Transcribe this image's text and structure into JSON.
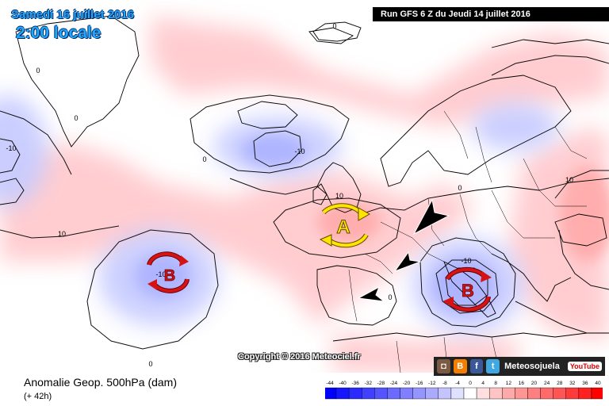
{
  "header": {
    "date": "Samedi 16 juillet 2016",
    "time": "2:00 locale",
    "run": "Run GFS 6 Z du Jeudi 14 juillet 2016"
  },
  "footer": {
    "field": "Anomalie Geop. 500hPa (dam)",
    "horizon": "(+ 42h)",
    "copyright": "Copyright © 2016 Meteociel.fr",
    "social_name": "Meteosojuela",
    "youtube_label": "YouTube"
  },
  "centers": {
    "high": {
      "letter": "A",
      "label": "10"
    },
    "low_atlantic": {
      "letter": "B",
      "label": "-10"
    },
    "low_italy": {
      "letter": "B",
      "label": "-10"
    }
  },
  "contour_labels": [
    "0",
    "0",
    "0",
    "0",
    "0",
    "0",
    "0",
    "-10",
    "-10",
    "-10",
    "-10",
    "10",
    "10",
    "10"
  ],
  "legend": {
    "ticks": [
      "-44",
      "-40",
      "-36",
      "-32",
      "-28",
      "-24",
      "-20",
      "-16",
      "-12",
      "-8",
      "-4",
      "0",
      "4",
      "8",
      "12",
      "16",
      "20",
      "24",
      "28",
      "32",
      "36",
      "40"
    ],
    "colors": [
      "#0000ff",
      "#1515ff",
      "#2a2aff",
      "#4040ff",
      "#5555ff",
      "#6a6aff",
      "#8080ff",
      "#9595ff",
      "#aaaaff",
      "#c4c4ff",
      "#e0e0ff",
      "#ffffff",
      "#ffe0e0",
      "#ffc4c4",
      "#ffaaaa",
      "#ff9595",
      "#ff8080",
      "#ff6a6a",
      "#ff5555",
      "#ff3a3a",
      "#ff2020",
      "#ff0000"
    ]
  },
  "colors": {
    "land": "#ffffff",
    "anomaly_positive": "#ffc8cc",
    "anomaly_negative": "#c8ccff",
    "title_blue": "#20a8ff",
    "high_yellow": "#ffe400",
    "low_red": "#d41414"
  }
}
